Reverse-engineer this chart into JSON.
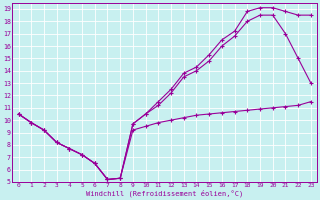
{
  "xlabel": "Windchill (Refroidissement éolien,°C)",
  "bg_color": "#c8f0f0",
  "line_color": "#990099",
  "xlim": [
    -0.5,
    23.5
  ],
  "ylim": [
    5,
    19.5
  ],
  "xticks": [
    0,
    1,
    2,
    3,
    4,
    5,
    6,
    7,
    8,
    9,
    10,
    11,
    12,
    13,
    14,
    15,
    16,
    17,
    18,
    19,
    20,
    21,
    22,
    23
  ],
  "yticks": [
    5,
    6,
    7,
    8,
    9,
    10,
    11,
    12,
    13,
    14,
    15,
    16,
    17,
    18,
    19
  ],
  "series": [
    {
      "x": [
        0,
        1,
        2,
        3,
        4,
        5,
        6,
        7,
        8,
        9,
        10,
        11,
        12,
        13,
        14,
        15,
        16,
        17,
        18,
        19,
        20,
        21,
        22,
        23
      ],
      "y": [
        10.5,
        9.8,
        9.2,
        8.2,
        7.7,
        7.2,
        6.5,
        5.2,
        5.3,
        9.7,
        10.5,
        11.5,
        12.5,
        13.8,
        14.3,
        15.3,
        16.5,
        17.2,
        18.8,
        19.1,
        19.1,
        18.8,
        18.5,
        18.5
      ]
    },
    {
      "x": [
        0,
        1,
        2,
        3,
        4,
        5,
        6,
        7,
        8,
        9,
        10,
        11,
        12,
        13,
        14,
        15,
        16,
        17,
        18,
        19,
        20,
        21,
        22,
        23
      ],
      "y": [
        10.5,
        9.8,
        9.2,
        8.2,
        7.7,
        7.2,
        6.5,
        5.2,
        5.3,
        9.7,
        10.5,
        11.2,
        12.2,
        13.5,
        14.0,
        14.8,
        16.0,
        16.8,
        18.0,
        18.5,
        18.5,
        17.0,
        15.0,
        13.0
      ]
    },
    {
      "x": [
        0,
        1,
        2,
        3,
        4,
        5,
        6,
        7,
        8,
        9,
        10,
        11,
        12,
        13,
        14,
        15,
        16,
        17,
        18,
        19,
        20,
        21,
        22,
        23
      ],
      "y": [
        10.5,
        9.8,
        9.2,
        8.2,
        7.7,
        7.2,
        6.5,
        5.2,
        5.3,
        9.2,
        9.5,
        9.8,
        10.0,
        10.2,
        10.4,
        10.5,
        10.6,
        10.7,
        10.8,
        10.9,
        11.0,
        11.1,
        11.2,
        11.5
      ]
    }
  ]
}
